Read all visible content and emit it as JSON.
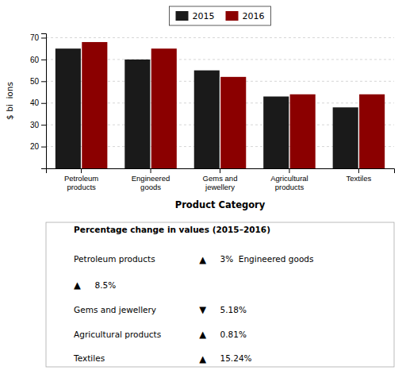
{
  "chart_data": {
    "type": "bar",
    "categories": [
      "Petroleum\nproducts",
      "Engineered\ngoods",
      "Gems and\njewellery",
      "Agricultural\nproducts",
      "Textiles"
    ],
    "series": [
      {
        "name": "2015",
        "color": "#1a1a1a",
        "values": [
          65,
          60,
          55,
          43,
          38
        ]
      },
      {
        "name": "2016",
        "color": "#8b0000",
        "values": [
          68,
          65,
          52,
          44,
          44
        ]
      }
    ],
    "xlabel": "Product Category",
    "ylabel": "$ bi  ions",
    "ylim": [
      10,
      72
    ],
    "yticks": [
      20,
      30,
      40,
      50,
      60,
      70
    ],
    "grid": true,
    "legend": "upper center",
    "table_title": "Percentage change in values (2015–2016)",
    "annotations": [
      [
        "Petroleum products",
        "▲",
        "3%  Engineered goods"
      ],
      [
        "▲",
        "8.5%"
      ],
      [
        "Gems and jewellery",
        "▼",
        "5.18%"
      ],
      [
        "Agricultural products",
        "▲",
        "0.81%"
      ],
      [
        "Textiles",
        "▲",
        "15.24%"
      ]
    ]
  }
}
